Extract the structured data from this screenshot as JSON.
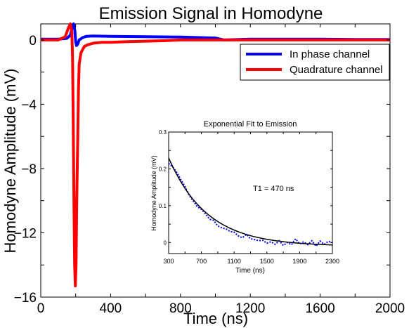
{
  "chart_data": [
    {
      "type": "line",
      "title": "Emission Signal in Homodyne",
      "xlabel": "Time (ns)",
      "ylabel": "Homodyne Amplitude (mV)",
      "xlim": [
        0,
        2000
      ],
      "ylim": [
        -16,
        1
      ],
      "xticks": [
        0,
        400,
        800,
        1200,
        1600,
        2000
      ],
      "yticks": [
        0,
        -4,
        -8,
        -12,
        -16
      ],
      "x_tick_labels": [
        "0",
        "400",
        "800",
        "1200",
        "1600",
        "2000"
      ],
      "y_tick_labels": [
        "0",
        "−4",
        "−8",
        "−12",
        "−16"
      ],
      "grid": false,
      "legend_position": "top-right",
      "series": [
        {
          "name": "In phase channel",
          "color": "#0000ff",
          "x": [
            0,
            100,
            150,
            170,
            180,
            188,
            195,
            200,
            205,
            212,
            220,
            240,
            260,
            300,
            400,
            600,
            800,
            1000,
            1050,
            1200,
            1400,
            1600,
            1800,
            1900,
            2000
          ],
          "y": [
            0.05,
            0.05,
            0.1,
            0.3,
            0.8,
            1.0,
            0.6,
            -0.1,
            -0.35,
            -0.25,
            0.0,
            0.15,
            0.22,
            0.25,
            0.22,
            0.2,
            0.18,
            0.12,
            0.0,
            0.05,
            0.05,
            0.05,
            0.03,
            0.03,
            0.03
          ]
        },
        {
          "name": "Quadrature channel",
          "color": "#ff0000",
          "x": [
            0,
            100,
            140,
            160,
            170,
            178,
            182,
            186,
            190,
            194,
            198,
            202,
            206,
            212,
            216,
            220,
            230,
            240,
            250,
            270,
            300,
            350,
            400,
            500,
            700,
            800,
            1000,
            1400,
            2000
          ],
          "y": [
            0.0,
            0.0,
            0.2,
            0.8,
            1.0,
            0.5,
            -1.0,
            -5.0,
            -10.0,
            -14.0,
            -15.3,
            -14.0,
            -10.0,
            -6.0,
            -3.0,
            -1.5,
            -0.8,
            -0.6,
            -0.4,
            -0.3,
            -0.2,
            -0.15,
            -0.15,
            -0.1,
            -0.05,
            0.0,
            0.0,
            0.0,
            0.0
          ]
        }
      ]
    },
    {
      "type": "line",
      "title": "Exponential Fit to Emission",
      "xlabel": "Time (ns)",
      "ylabel": "Homodyne Amplitude (mV)",
      "xlim": [
        300,
        2300
      ],
      "ylim": [
        -0.03,
        0.3
      ],
      "xticks": [
        300,
        700,
        1100,
        1500,
        1900,
        2300
      ],
      "yticks": [
        0,
        0.1,
        0.2,
        0.3
      ],
      "x_tick_labels": [
        "300",
        "700",
        "1100",
        "1500",
        "1900",
        "2300"
      ],
      "y_tick_labels": [
        "0",
        "0.1",
        "0.2",
        "0.3"
      ],
      "annotation": "T1 = 470 ns",
      "grid": false,
      "series": [
        {
          "color": "#0000ff",
          "style": "dotted",
          "x": [
            300,
            350,
            400,
            450,
            500,
            550,
            600,
            650,
            700,
            750,
            800,
            850,
            900,
            950,
            1000,
            1050,
            1100,
            1150,
            1200,
            1250,
            1300,
            1350,
            1400,
            1450,
            1500,
            1550,
            1600,
            1650,
            1700,
            1750,
            1800,
            1850,
            1900,
            1950,
            2000,
            2050,
            2100,
            2150,
            2200,
            2250,
            2300
          ],
          "y": [
            0.215,
            0.205,
            0.19,
            0.17,
            0.152,
            0.128,
            0.113,
            0.097,
            0.09,
            0.078,
            0.063,
            0.06,
            0.045,
            0.04,
            0.037,
            0.03,
            0.028,
            0.018,
            0.013,
            0.022,
            0.01,
            0.008,
            0.005,
            0.006,
            -0.002,
            0.002,
            -0.005,
            0.005,
            -0.008,
            0.0,
            -0.006,
            0.01,
            -0.004,
            0.002,
            -0.006,
            0.005,
            -0.01,
            0.004,
            -0.005,
            0.003,
            0.0
          ]
        },
        {
          "color": "#000000",
          "style": "solid",
          "fit": {
            "amplitude": 0.24,
            "tau": 470,
            "offset": -0.01,
            "t0": 300
          }
        }
      ]
    }
  ]
}
